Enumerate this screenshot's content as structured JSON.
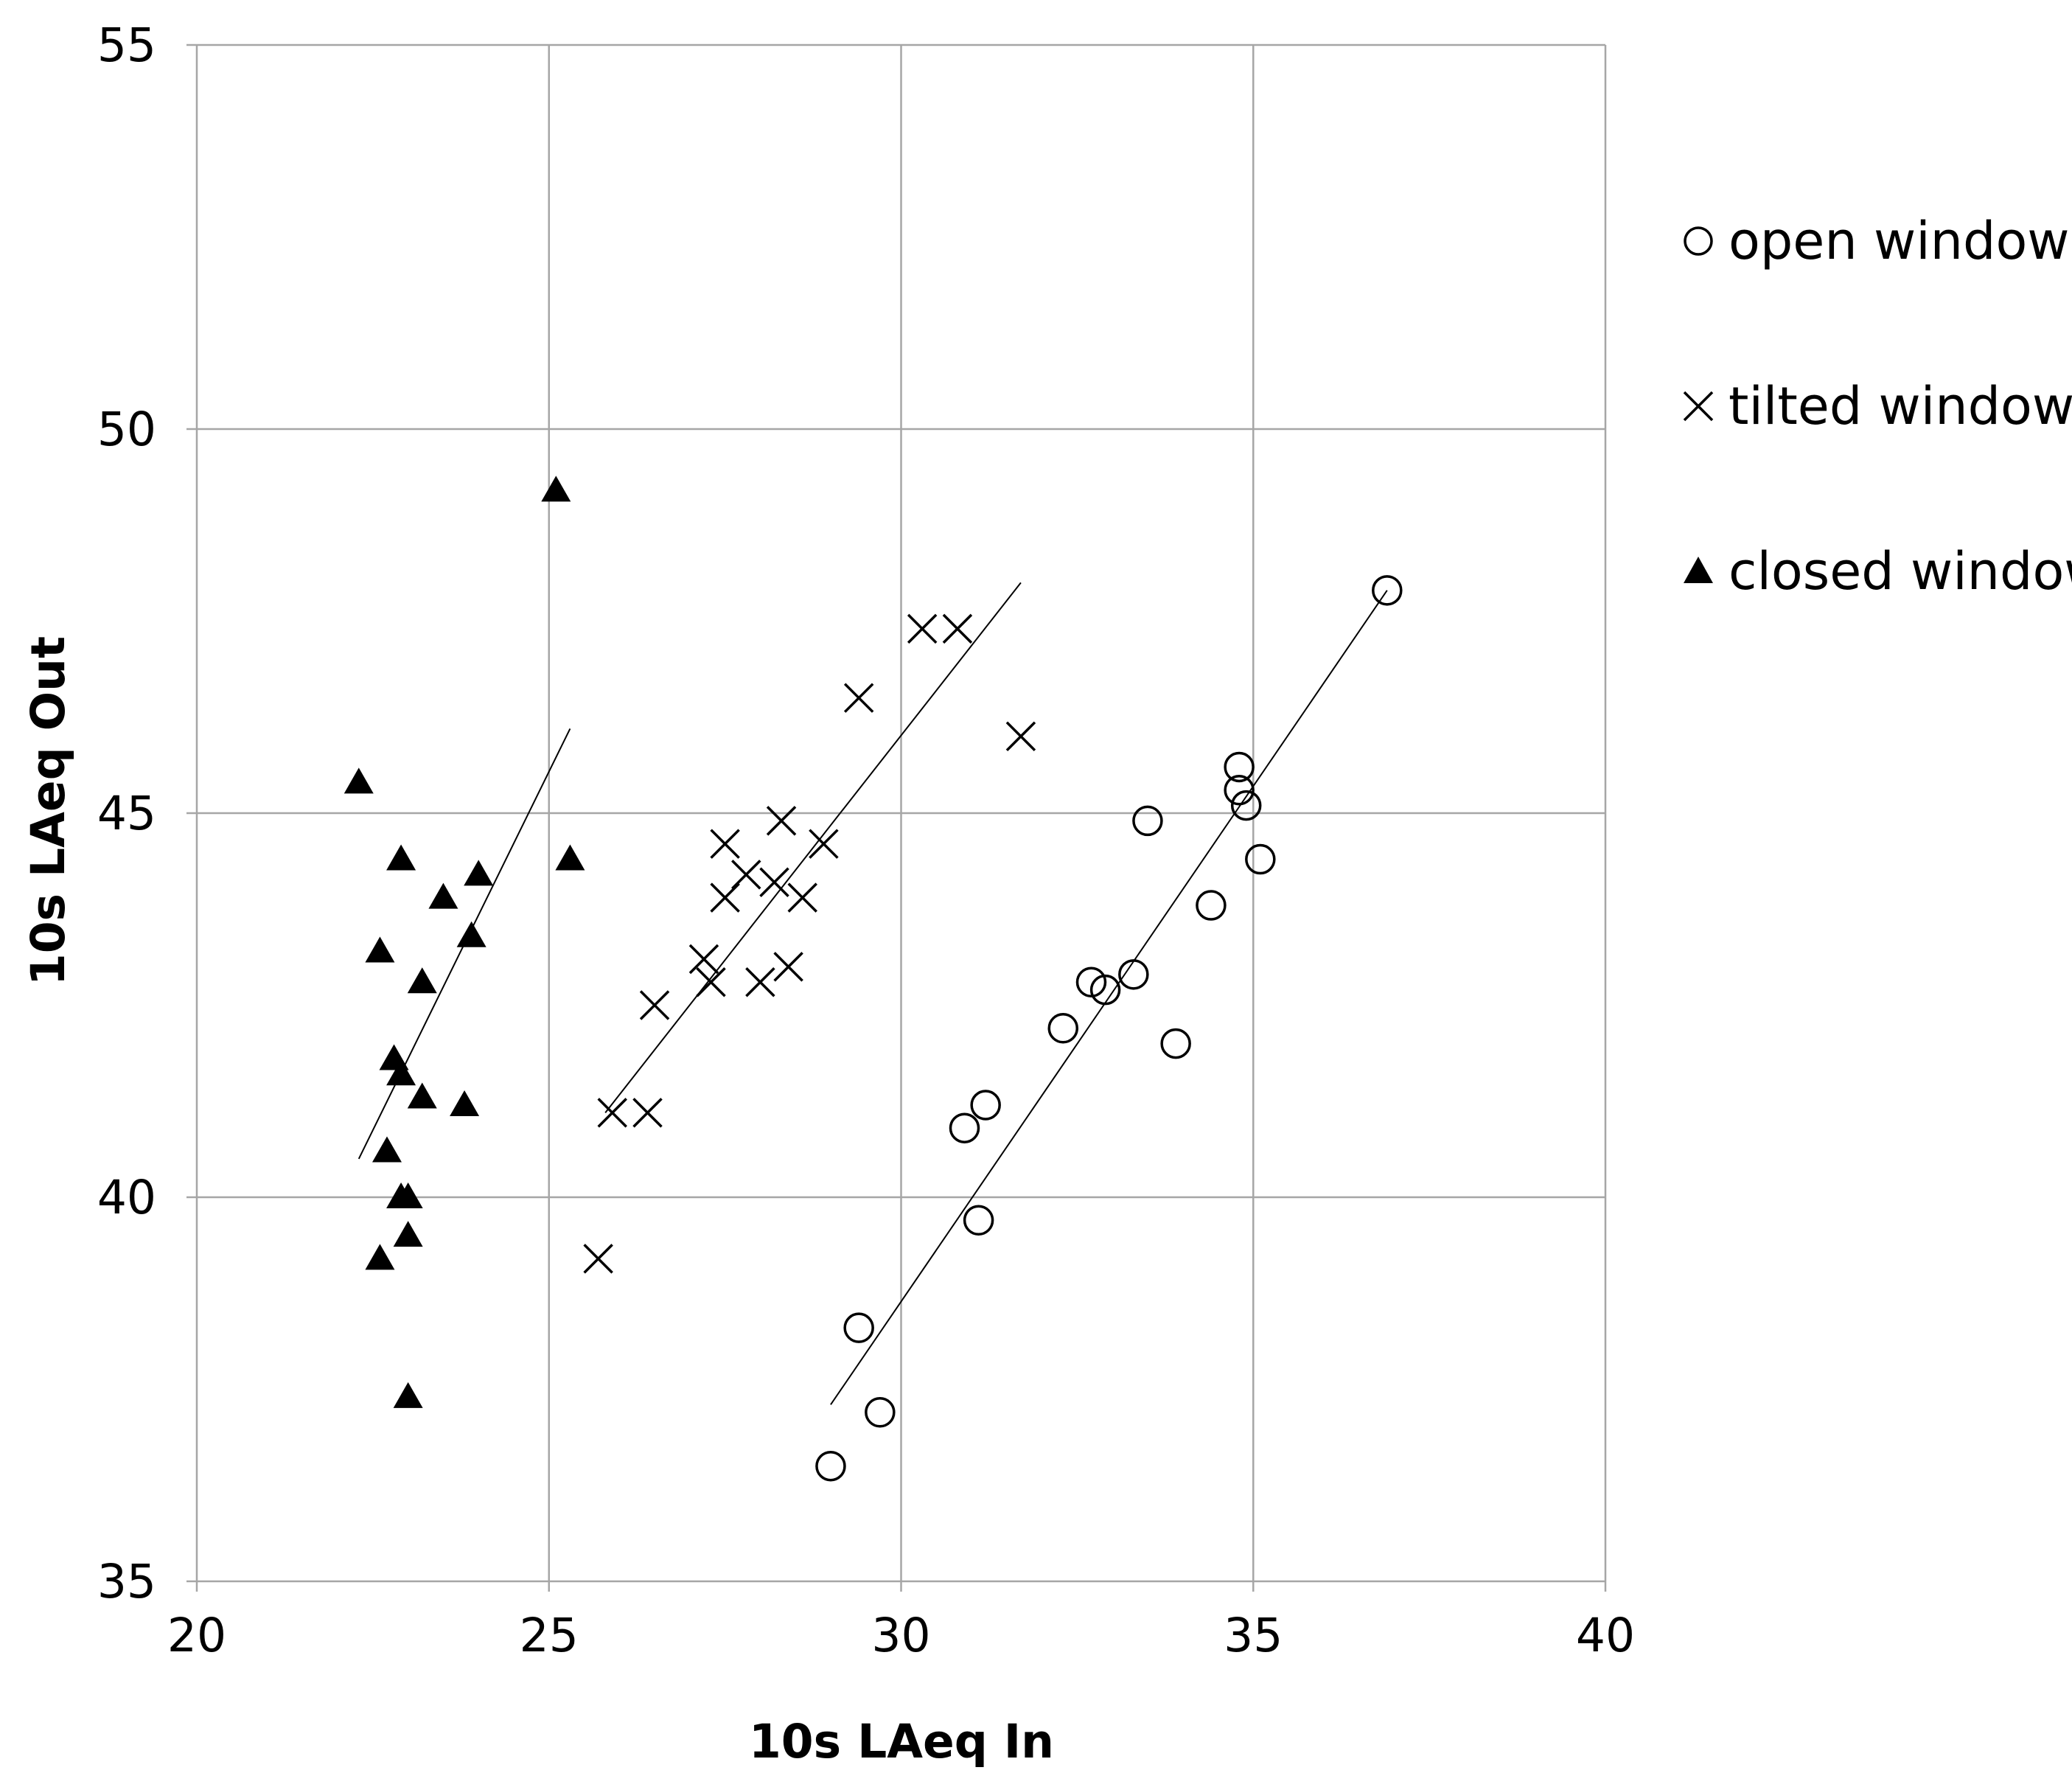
{
  "chart_data": {
    "type": "scatter",
    "title": "",
    "xlabel": "10s LAeq In",
    "ylabel": "10s LAeq Out",
    "xlim": [
      20,
      40
    ],
    "ylim": [
      35,
      55
    ],
    "x_ticks": [
      20,
      25,
      30,
      35,
      40
    ],
    "y_ticks": [
      35,
      40,
      45,
      50,
      55
    ],
    "grid": true,
    "legend_position": "right",
    "series": [
      {
        "name": "open window",
        "marker": "circle-open",
        "color": "#000000",
        "points": [
          [
            29.0,
            36.5
          ],
          [
            29.7,
            37.2
          ],
          [
            29.4,
            38.3
          ],
          [
            31.1,
            39.7
          ],
          [
            30.9,
            40.9
          ],
          [
            31.2,
            41.2
          ],
          [
            32.3,
            42.2
          ],
          [
            32.7,
            42.8
          ],
          [
            32.9,
            42.7
          ],
          [
            33.3,
            42.9
          ],
          [
            33.9,
            42.0
          ],
          [
            34.4,
            43.8
          ],
          [
            33.5,
            44.9
          ],
          [
            34.8,
            45.3
          ],
          [
            34.8,
            45.6
          ],
          [
            34.9,
            45.1
          ],
          [
            35.1,
            44.4
          ],
          [
            36.9,
            47.9
          ]
        ],
        "trendline": [
          [
            29.0,
            37.3
          ],
          [
            36.9,
            47.9
          ]
        ]
      },
      {
        "name": "tilted window",
        "marker": "x",
        "color": "#000000",
        "points": [
          [
            25.7,
            39.2
          ],
          [
            25.9,
            41.1
          ],
          [
            26.4,
            41.1
          ],
          [
            26.5,
            42.5
          ],
          [
            27.2,
            43.1
          ],
          [
            27.3,
            42.8
          ],
          [
            27.5,
            43.9
          ],
          [
            27.5,
            44.6
          ],
          [
            27.8,
            44.2
          ],
          [
            28.0,
            42.8
          ],
          [
            28.2,
            44.1
          ],
          [
            28.4,
            43.0
          ],
          [
            28.3,
            44.9
          ],
          [
            28.6,
            43.9
          ],
          [
            28.9,
            44.6
          ],
          [
            29.4,
            46.5
          ],
          [
            30.3,
            47.4
          ],
          [
            30.8,
            47.4
          ],
          [
            31.7,
            46.0
          ]
        ],
        "trendline": [
          [
            25.8,
            41.1
          ],
          [
            31.7,
            48.0
          ]
        ]
      },
      {
        "name": "closed window",
        "marker": "triangle-filled",
        "color": "#000000",
        "points": [
          [
            22.3,
            45.4
          ],
          [
            22.6,
            43.2
          ],
          [
            22.9,
            44.4
          ],
          [
            23.5,
            43.9
          ],
          [
            24.0,
            44.2
          ],
          [
            23.9,
            43.4
          ],
          [
            23.2,
            42.8
          ],
          [
            22.8,
            41.8
          ],
          [
            22.9,
            41.6
          ],
          [
            23.2,
            41.3
          ],
          [
            23.8,
            41.2
          ],
          [
            22.7,
            40.6
          ],
          [
            22.9,
            40.0
          ],
          [
            23.0,
            40.0
          ],
          [
            23.0,
            39.5
          ],
          [
            22.6,
            39.2
          ],
          [
            23.0,
            37.4
          ],
          [
            25.1,
            49.2
          ],
          [
            25.3,
            44.4
          ]
        ],
        "trendline": [
          [
            22.3,
            40.5
          ],
          [
            25.3,
            46.1
          ]
        ]
      }
    ]
  }
}
